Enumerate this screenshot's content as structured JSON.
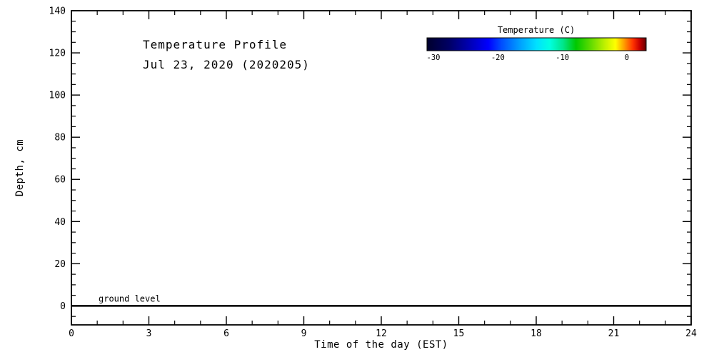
{
  "chart_data": {
    "type": "heatmap",
    "title_line1": "Temperature Profile",
    "title_line2": "Jul 23, 2020 (2020205)",
    "xlabel": "Time of the day (EST)",
    "ylabel": "Depth, cm",
    "xlim": [
      0,
      24
    ],
    "ylim": [
      -9,
      140
    ],
    "x_ticks": [
      0,
      3,
      6,
      9,
      12,
      15,
      18,
      21,
      24
    ],
    "x_minor_step": 1,
    "y_ticks": [
      0,
      20,
      40,
      60,
      80,
      100,
      120,
      140
    ],
    "y_minor_step": 5,
    "grid": false,
    "plot_area_empty": true,
    "series": [],
    "ground_level": {
      "label": "ground level",
      "depth": 0
    },
    "colorbar": {
      "title": "Temperature (C)",
      "range": [
        -31,
        3
      ],
      "tick_values": [
        -30,
        -20,
        -10,
        0
      ],
      "tick_labels": [
        "-30",
        "-20",
        "-10",
        "0"
      ],
      "gradient": [
        {
          "at": 0.0,
          "color": "#00002d"
        },
        {
          "at": 0.1,
          "color": "#000064"
        },
        {
          "at": 0.2,
          "color": "#0000b9"
        },
        {
          "at": 0.28,
          "color": "#0000ff"
        },
        {
          "at": 0.34,
          "color": "#004dff"
        },
        {
          "at": 0.42,
          "color": "#009cff"
        },
        {
          "at": 0.5,
          "color": "#00e1ff"
        },
        {
          "at": 0.56,
          "color": "#00ffe1"
        },
        {
          "at": 0.62,
          "color": "#00e68c"
        },
        {
          "at": 0.68,
          "color": "#00c800"
        },
        {
          "at": 0.75,
          "color": "#64dc00"
        },
        {
          "at": 0.81,
          "color": "#bef000"
        },
        {
          "at": 0.86,
          "color": "#ffff00"
        },
        {
          "at": 0.9,
          "color": "#ff9b00"
        },
        {
          "at": 0.94,
          "color": "#ff3200"
        },
        {
          "at": 0.97,
          "color": "#c80000"
        },
        {
          "at": 1.0,
          "color": "#640000"
        }
      ]
    }
  },
  "colors": {
    "axis": "#000000",
    "text": "#000000",
    "background": "#ffffff"
  }
}
